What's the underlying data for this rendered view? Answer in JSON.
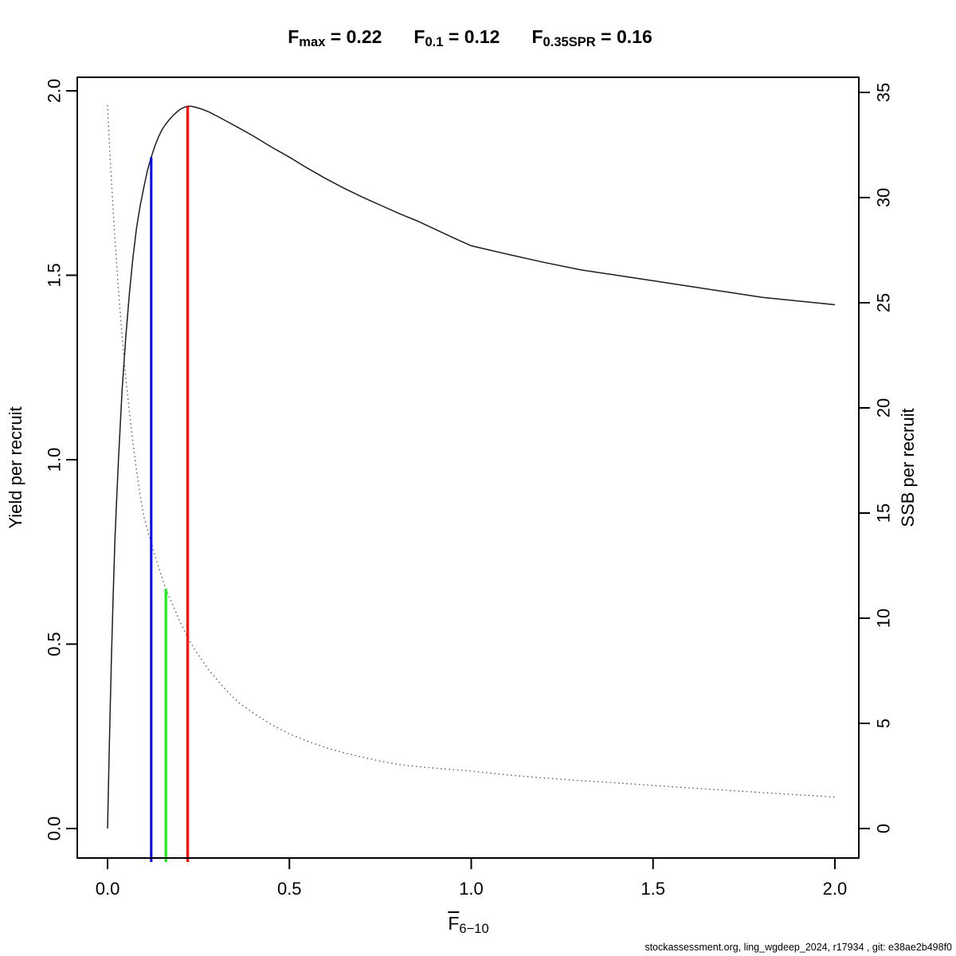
{
  "title": {
    "parts": [
      {
        "base": "F",
        "sub": "max",
        "rest": " = 0.22"
      },
      {
        "base": "F",
        "sub": "0.1",
        "rest": " = 0.12"
      },
      {
        "base": "F",
        "sub": "0.35SPR",
        "rest": " = 0.16"
      }
    ]
  },
  "axes": {
    "x_label_base": "F",
    "x_label_sub": "6−10",
    "y_left_label": "Yield per recruit",
    "y_right_label": "SSB per recruit"
  },
  "footer": {
    "text": "stockassessment.org, ling_wgdeep_2024, r17934 , git: e38ae2b498f0"
  },
  "chart_data": {
    "type": "line",
    "title": "Fmax = 0.22    F0.1 = 0.12    F0.35SPR = 0.16",
    "xlabel": "F6-10 (mean F ages 6-10)",
    "grid": false,
    "background": "#ffffff",
    "x_axis": {
      "range": [
        -0.0833,
        2.0658
      ],
      "ticks": [
        0,
        0.5,
        1,
        1.5,
        2
      ],
      "tick_labels": [
        "0.0",
        "0.5",
        "1.0",
        "1.5",
        "2.0"
      ]
    },
    "y_left": {
      "label": "Yield per recruit",
      "range": [
        -0.0799,
        2.0367
      ],
      "ticks": [
        0,
        0.5,
        1,
        1.5,
        2
      ],
      "tick_labels": [
        "0.0",
        "0.5",
        "1.0",
        "1.5",
        "2.0"
      ]
    },
    "y_right": {
      "label": "SSB per recruit",
      "range": [
        -1.402,
        35.72
      ],
      "ticks": [
        0,
        5,
        10,
        15,
        20,
        25,
        30,
        35
      ],
      "tick_labels": [
        "0",
        "5",
        "10",
        "15",
        "20",
        "25",
        "30",
        "35"
      ]
    },
    "series": [
      {
        "name": "yield-per-recruit",
        "axis": "left",
        "style": "solid",
        "color": "#1c1c1c",
        "points": [
          [
            0,
            0
          ],
          [
            0.005,
            0.23
          ],
          [
            0.01,
            0.44
          ],
          [
            0.015,
            0.62
          ],
          [
            0.02,
            0.78
          ],
          [
            0.025,
            0.89
          ],
          [
            0.03,
            1.0
          ],
          [
            0.04,
            1.19
          ],
          [
            0.05,
            1.33
          ],
          [
            0.06,
            1.45
          ],
          [
            0.07,
            1.55
          ],
          [
            0.08,
            1.63
          ],
          [
            0.09,
            1.69
          ],
          [
            0.1,
            1.74
          ],
          [
            0.11,
            1.785
          ],
          [
            0.12,
            1.82
          ],
          [
            0.13,
            1.85
          ],
          [
            0.14,
            1.875
          ],
          [
            0.15,
            1.895
          ],
          [
            0.16,
            1.91
          ],
          [
            0.17,
            1.922
          ],
          [
            0.18,
            1.933
          ],
          [
            0.19,
            1.942
          ],
          [
            0.2,
            1.95
          ],
          [
            0.21,
            1.955
          ],
          [
            0.22,
            1.958
          ],
          [
            0.23,
            1.958
          ],
          [
            0.24,
            1.956
          ],
          [
            0.26,
            1.95
          ],
          [
            0.28,
            1.942
          ],
          [
            0.3,
            1.932
          ],
          [
            0.33,
            1.916
          ],
          [
            0.36,
            1.9
          ],
          [
            0.4,
            1.878
          ],
          [
            0.45,
            1.848
          ],
          [
            0.5,
            1.82
          ],
          [
            0.55,
            1.79
          ],
          [
            0.6,
            1.762
          ],
          [
            0.65,
            1.736
          ],
          [
            0.7,
            1.712
          ],
          [
            0.75,
            1.69
          ],
          [
            0.8,
            1.668
          ],
          [
            0.85,
            1.648
          ],
          [
            0.9,
            1.625
          ],
          [
            0.95,
            1.602
          ],
          [
            1.0,
            1.58
          ],
          [
            1.1,
            1.557
          ],
          [
            1.2,
            1.535
          ],
          [
            1.3,
            1.515
          ],
          [
            1.4,
            1.5
          ],
          [
            1.5,
            1.485
          ],
          [
            1.6,
            1.47
          ],
          [
            1.7,
            1.455
          ],
          [
            1.8,
            1.44
          ],
          [
            1.9,
            1.43
          ],
          [
            2.0,
            1.42
          ]
        ]
      },
      {
        "name": "ssb-per-recruit",
        "axis": "right",
        "style": "dotted",
        "color": "#5a5a5a",
        "points": [
          [
            0,
            34.4
          ],
          [
            0.005,
            32.6
          ],
          [
            0.01,
            31.0
          ],
          [
            0.015,
            29.5
          ],
          [
            0.02,
            28.1
          ],
          [
            0.03,
            25.6
          ],
          [
            0.04,
            23.4
          ],
          [
            0.05,
            21.5
          ],
          [
            0.06,
            19.8
          ],
          [
            0.07,
            18.3
          ],
          [
            0.08,
            17.0
          ],
          [
            0.09,
            15.8
          ],
          [
            0.1,
            14.8
          ],
          [
            0.11,
            14.2
          ],
          [
            0.12,
            13.6
          ],
          [
            0.13,
            13.0
          ],
          [
            0.14,
            12.45
          ],
          [
            0.15,
            11.9
          ],
          [
            0.16,
            11.4
          ],
          [
            0.17,
            11.0
          ],
          [
            0.18,
            10.6
          ],
          [
            0.19,
            10.2
          ],
          [
            0.2,
            9.8
          ],
          [
            0.21,
            9.45
          ],
          [
            0.22,
            9.1
          ],
          [
            0.24,
            8.5
          ],
          [
            0.26,
            8.0
          ],
          [
            0.28,
            7.5
          ],
          [
            0.3,
            7.1
          ],
          [
            0.33,
            6.5
          ],
          [
            0.36,
            6.0
          ],
          [
            0.4,
            5.5
          ],
          [
            0.45,
            4.95
          ],
          [
            0.5,
            4.5
          ],
          [
            0.55,
            4.15
          ],
          [
            0.6,
            3.85
          ],
          [
            0.65,
            3.6
          ],
          [
            0.7,
            3.4
          ],
          [
            0.75,
            3.2
          ],
          [
            0.8,
            3.05
          ],
          [
            0.85,
            2.95
          ],
          [
            0.9,
            2.87
          ],
          [
            0.95,
            2.8
          ],
          [
            1.0,
            2.73
          ],
          [
            1.1,
            2.55
          ],
          [
            1.2,
            2.4
          ],
          [
            1.3,
            2.28
          ],
          [
            1.4,
            2.17
          ],
          [
            1.5,
            2.05
          ],
          [
            1.6,
            1.93
          ],
          [
            1.7,
            1.82
          ],
          [
            1.8,
            1.71
          ],
          [
            1.9,
            1.6
          ],
          [
            2.0,
            1.5
          ]
        ]
      }
    ],
    "reference_lines": [
      {
        "name": "F01",
        "x": 0.12,
        "top": 1.82,
        "axis": "left",
        "color": "#0000ff"
      },
      {
        "name": "F035SPR",
        "x": 0.16,
        "top": 11.4,
        "axis": "right",
        "color": "#00ff00"
      },
      {
        "name": "Fmax",
        "x": 0.22,
        "top": 1.958,
        "axis": "left",
        "color": "#ff0000"
      }
    ],
    "estimates": {
      "Fmax": 0.22,
      "F0.1": 0.12,
      "F0.35SPR": 0.16
    }
  }
}
